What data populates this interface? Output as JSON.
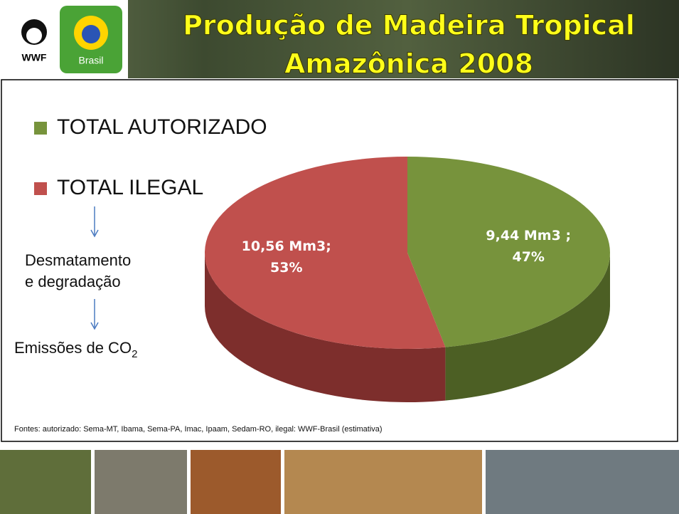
{
  "header": {
    "title": [
      "Produção de Madeira Tropical",
      "Amazônica 2008"
    ],
    "logo": "WWF",
    "logo_brasil": "Brasil"
  },
  "chart_data": {
    "type": "pie",
    "categories": [
      "TOTAL AUTORIZADO",
      "TOTAL ILEGAL"
    ],
    "values": [
      47,
      53
    ],
    "value_labels": [
      [
        "9,44 Mm3 ;",
        "47%"
      ],
      [
        "10,56 Mm3;",
        "53%"
      ]
    ],
    "colors": [
      "#77933c",
      "#c0504d"
    ],
    "side_colors": [
      "#4c5f24",
      "#7d2e2c"
    ]
  },
  "notes": {
    "step1": [
      "Desmatamento",
      "e degradação"
    ],
    "step2": "Emissões de CO",
    "step2_sub": "2"
  },
  "footer": "Fontes: autorizado: Sema-MT, Ibama, Sema-PA, Imac, Ipaam, Sedam-RO, ilegal: WWF-Brasil (estimativa)"
}
